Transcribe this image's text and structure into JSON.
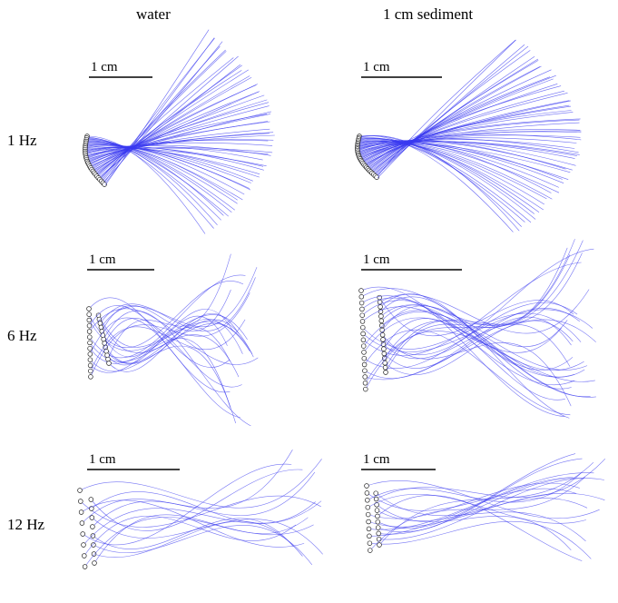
{
  "columns": [
    "water",
    "1 cm sediment"
  ],
  "rows": [
    "1 Hz",
    "6 Hz",
    "12 Hz"
  ],
  "scale_bar_label": "1 cm",
  "colors": {
    "ray": "#3a3af0",
    "marker": "#222222",
    "scale_bar": "#000000"
  },
  "panels": [
    {
      "row": 0,
      "col": 0,
      "style": "focus",
      "rays": 60
    },
    {
      "row": 0,
      "col": 1,
      "style": "focus",
      "rays": 60
    },
    {
      "row": 1,
      "col": 0,
      "style": "sweep",
      "rays": 26
    },
    {
      "row": 1,
      "col": 1,
      "style": "sweep",
      "rays": 34
    },
    {
      "row": 2,
      "col": 0,
      "style": "sweep",
      "rays": 16
    },
    {
      "row": 2,
      "col": 1,
      "style": "sweep",
      "rays": 20
    }
  ]
}
